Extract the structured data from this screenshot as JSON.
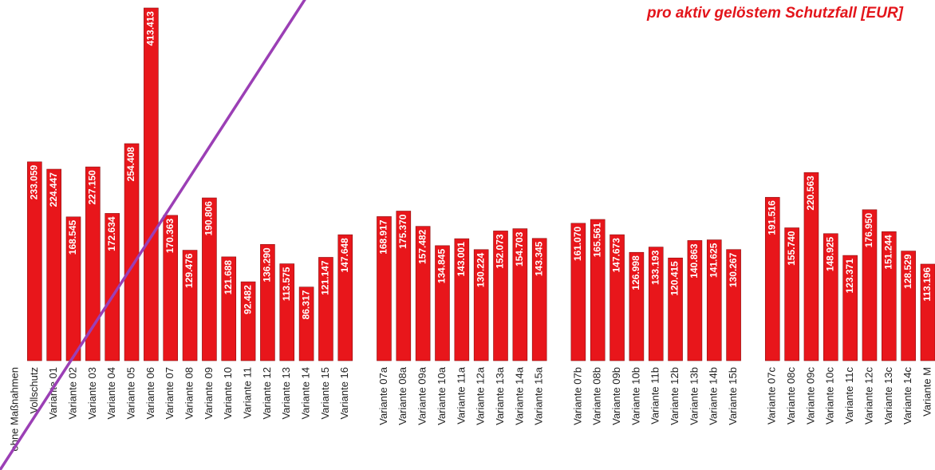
{
  "chart_data": {
    "type": "bar",
    "title": "pro aktiv gelöstem Schutzfall [EUR]",
    "color": "#e8161b",
    "categories": [
      "ohne Maßnahmen",
      "Vollschutz",
      "Variante 01",
      "Variante 02",
      "Variante 03",
      "Variante 04",
      "Variante 05",
      "Variante 06",
      "Variante 07",
      "Variante 08",
      "Variante 09",
      "Variante 10",
      "Variante 11",
      "Variante 12",
      "Variante 13",
      "Variante 14",
      "Variante 15",
      "Variante 16",
      null,
      "Variante 07a",
      "Variante 08a",
      "Variante 09a",
      "Variante 10a",
      "Variante 11a",
      "Variante 12a",
      "Variante 13a",
      "Variante 14a",
      "Variante 15a",
      null,
      "Variante 07b",
      "Variante 08b",
      "Variante 09b",
      "Variante 10b",
      "Variante 11b",
      "Variante 12b",
      "Variante 13b",
      "Variante 14b",
      "Variante 15b",
      null,
      "Variante 07c",
      "Variante 08c",
      "Variante 09c",
      "Variante 10c",
      "Variante 11c",
      "Variante 12c",
      "Variante 13c",
      "Variante 14c",
      "Variante M"
    ],
    "values": [
      null,
      233059,
      224447,
      168545,
      227150,
      172634,
      254408,
      413413,
      170363,
      129476,
      190806,
      121688,
      92482,
      136290,
      113575,
      86317,
      121147,
      147648,
      null,
      168917,
      175370,
      157482,
      134845,
      143001,
      130224,
      152073,
      154703,
      143345,
      null,
      161070,
      165561,
      147673,
      126998,
      133193,
      120415,
      140863,
      141625,
      130267,
      null,
      191516,
      155740,
      220563,
      148925,
      123371,
      176950,
      151244,
      128529,
      113196
    ],
    "value_labels": [
      null,
      "233.059",
      "224.447",
      "168.545",
      "227.150",
      "172.634",
      "254.408",
      "413.413",
      "170.363",
      "129.476",
      "190.806",
      "121.688",
      "92.482",
      "136.290",
      "113.575",
      "86.317",
      "121.147",
      "147.648",
      null,
      "168.917",
      "175.370",
      "157.482",
      "134.845",
      "143.001",
      "130.224",
      "152.073",
      "154.703",
      "143.345",
      null,
      "161.070",
      "165.561",
      "147.673",
      "126.998",
      "133.193",
      "120.415",
      "140.863",
      "141.625",
      "130.267",
      null,
      "191.516",
      "155.740",
      "220.563",
      "148.925",
      "123.371",
      "176.950",
      "151.244",
      "128.529",
      "113.196"
    ]
  }
}
